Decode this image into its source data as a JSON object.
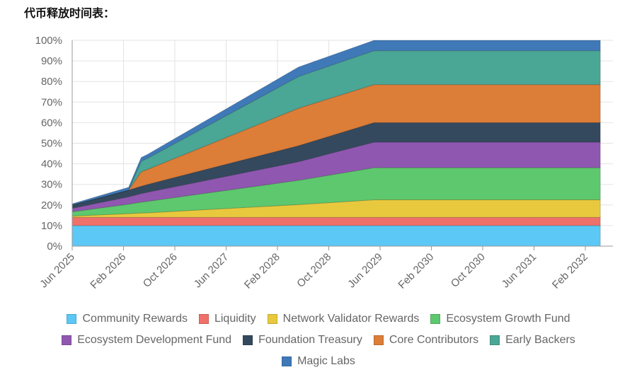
{
  "page": {
    "title": "代币释放时间表："
  },
  "chart_data": {
    "type": "area",
    "stacked": true,
    "title": "代币释放时间表：",
    "x_ticks": [
      "Jun 2025",
      "Feb 2026",
      "Oct 2026",
      "Jun 2027",
      "Feb 2028",
      "Oct 2028",
      "Jun 2029",
      "Feb 2030",
      "Oct 2030",
      "Jun 2031",
      "Feb 2032"
    ],
    "y_ticks": [
      "0%",
      "10%",
      "20%",
      "30%",
      "40%",
      "50%",
      "60%",
      "70%",
      "80%",
      "90%",
      "100%"
    ],
    "ylim": [
      0,
      100
    ],
    "grid": true,
    "legend_position": "bottom",
    "x": [
      "2025-06",
      "2026-03",
      "2026-05",
      "2026-06",
      "2028-06",
      "2029-06",
      "2032-06"
    ],
    "series": [
      {
        "name": "Community Rewards",
        "color": "#5bc8f5",
        "values": [
          10,
          10,
          10,
          10,
          10,
          10,
          10
        ]
      },
      {
        "name": "Liquidity",
        "color": "#f0706a",
        "values": [
          4,
          4,
          4,
          4,
          4,
          4,
          4
        ]
      },
      {
        "name": "Network Validator Rewards",
        "color": "#e8c93e",
        "values": [
          0.6,
          1.8,
          2.1,
          2.2,
          6.2,
          8.5,
          8.5
        ]
      },
      {
        "name": "Ecosystem Growth Fund",
        "color": "#5dc86e",
        "values": [
          2.1,
          4.6,
          5.3,
          5.6,
          11.8,
          15.6,
          15.6
        ]
      },
      {
        "name": "Ecosystem Development Fund",
        "color": "#9057b0",
        "values": [
          1.7,
          3.6,
          4.1,
          4.4,
          9.0,
          12.4,
          12.4
        ]
      },
      {
        "name": "Foundation Treasury",
        "color": "#34495e",
        "values": [
          1.6,
          3.2,
          3.6,
          3.8,
          7.8,
          9.5,
          9.5
        ]
      },
      {
        "name": "Core Contributors",
        "color": "#dc7d38",
        "values": [
          0,
          0,
          7.0,
          7.3,
          18.2,
          18.5,
          18.5
        ]
      },
      {
        "name": "Early Backers",
        "color": "#4aa695",
        "values": [
          0,
          0,
          5.2,
          5.4,
          15.4,
          16.5,
          16.5
        ]
      },
      {
        "name": "Magic Labs",
        "color": "#3f79b8",
        "values": [
          0.6,
          1.4,
          1.8,
          1.9,
          4.6,
          5.0,
          5.0
        ]
      }
    ]
  }
}
